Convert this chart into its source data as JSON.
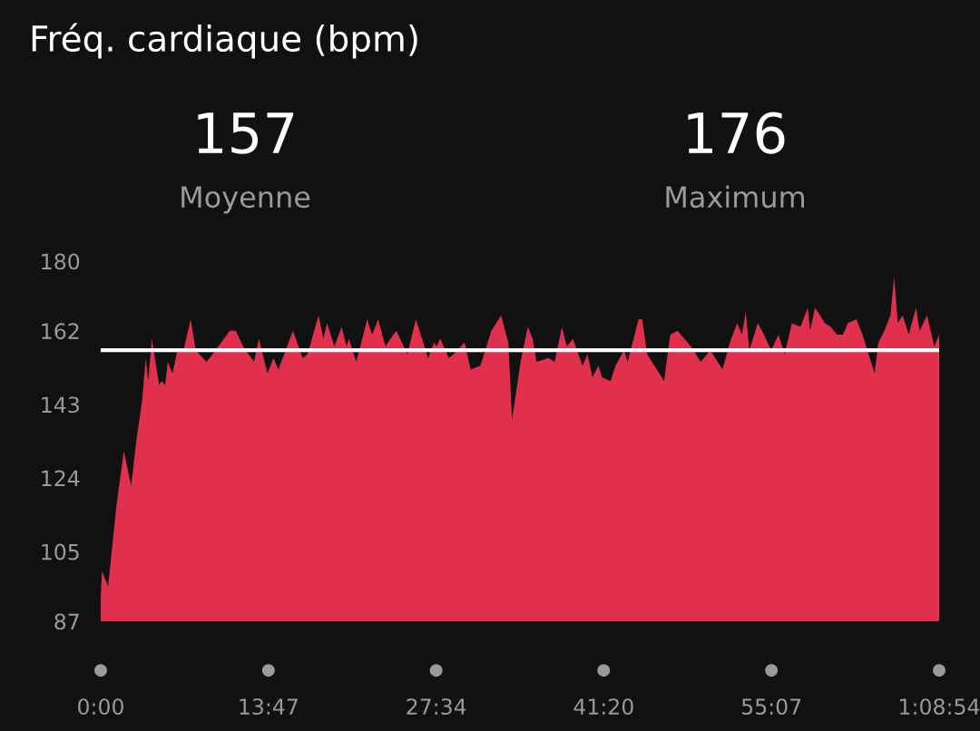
{
  "chart_data": {
    "type": "area",
    "title": "Fréq. cardiaque (bpm)",
    "annotations": [
      "157",
      "Moyenne",
      "176",
      "Maximum"
    ],
    "x": [
      0,
      0.1,
      0.6,
      0.8,
      1.3,
      1.9,
      2.5,
      2.9,
      3.4,
      3.7,
      3.9,
      4.2,
      4.8,
      5.0,
      5.3,
      5.5,
      5.9,
      6.3,
      6.8,
      7.4,
      7.8,
      8.7,
      9.2,
      10.6,
      11.1,
      11.7,
      12.6,
      13.0,
      13.7,
      14.2,
      14.6,
      15.8,
      16.6,
      17.0,
      17.9,
      18.3,
      18.6,
      19.2,
      19.8,
      20.2,
      20.4,
      21.0,
      21.9,
      22.3,
      22.8,
      23.4,
      23.8,
      24.3,
      25.2,
      25.9,
      26.2,
      26.9,
      27.4,
      27.6,
      27.9,
      28.6,
      29.0,
      29.9,
      30.4,
      31.2,
      32.1,
      32.9,
      33.5,
      33.8,
      34.5,
      35.1,
      35.5,
      35.8,
      36.8,
      37.3,
      37.9,
      38.3,
      38.8,
      39.6,
      40.0,
      40.4,
      40.9,
      41.2,
      41.9,
      42.3,
      43.0,
      43.3,
      44.2,
      44.5,
      44.9,
      46.3,
      46.8,
      47.4,
      48.5,
      49.3,
      50.1,
      51.1,
      51.7,
      52.3,
      52.7,
      53.0,
      53.3,
      54.0,
      54.5,
      55.1,
      55.7,
      56.2,
      56.8,
      57.5,
      58.1,
      58.3,
      58.7,
      59.5,
      60.0,
      60.5,
      61.0,
      61.4,
      62.1,
      62.6,
      63.2,
      63.6,
      63.9,
      64.4,
      64.9,
      65.2,
      65.5,
      65.9,
      66.4,
      67.0,
      67.3,
      67.9,
      68.2,
      68.5,
      68.9
    ],
    "series": [
      {
        "color": "#e0304d",
        "values": [
          93,
          100,
          96,
          102,
          117,
          131,
          122,
          133,
          144,
          155,
          149,
          160,
          148,
          149,
          148,
          154,
          151,
          157,
          157,
          165,
          157,
          154,
          156,
          162,
          162,
          158,
          154,
          160,
          151,
          155,
          152,
          162,
          155,
          156,
          166,
          160,
          164,
          158,
          163,
          158,
          160,
          154,
          165,
          161,
          165,
          158,
          160,
          162,
          156,
          165,
          162,
          155,
          159,
          158,
          160,
          155,
          156,
          159,
          152,
          153,
          162,
          166,
          159,
          139,
          154,
          163,
          160,
          154,
          155,
          154,
          163,
          158,
          160,
          153,
          156,
          150,
          153,
          150,
          149,
          153,
          157,
          154,
          165,
          165,
          156,
          149,
          161,
          162,
          158,
          154,
          157,
          152,
          159,
          164,
          161,
          167,
          157,
          164,
          161,
          157,
          161,
          156,
          164,
          163,
          168,
          162,
          168,
          164,
          163,
          161,
          161,
          164,
          165,
          161,
          155,
          151,
          159,
          162,
          166,
          176,
          164,
          166,
          161,
          168,
          162,
          166,
          162,
          158,
          161
        ]
      }
    ],
    "xlim": [
      0,
      68.9
    ],
    "xticks": [
      {
        "value": 0,
        "label": "0:00"
      },
      {
        "value": 13.783,
        "label": "13:47"
      },
      {
        "value": 27.567,
        "label": "27:34"
      },
      {
        "value": 41.333,
        "label": "41:20"
      },
      {
        "value": 55.117,
        "label": "55:07"
      },
      {
        "value": 68.9,
        "label": "1:08:54"
      }
    ],
    "ylim": [
      87,
      180
    ],
    "yticks": [
      87,
      105,
      124,
      143,
      162,
      180
    ],
    "ref_lines": [
      {
        "axis": "y",
        "value": 157,
        "color": "#ffffff",
        "line_style": "solid"
      }
    ],
    "grid": false,
    "legend": false
  }
}
